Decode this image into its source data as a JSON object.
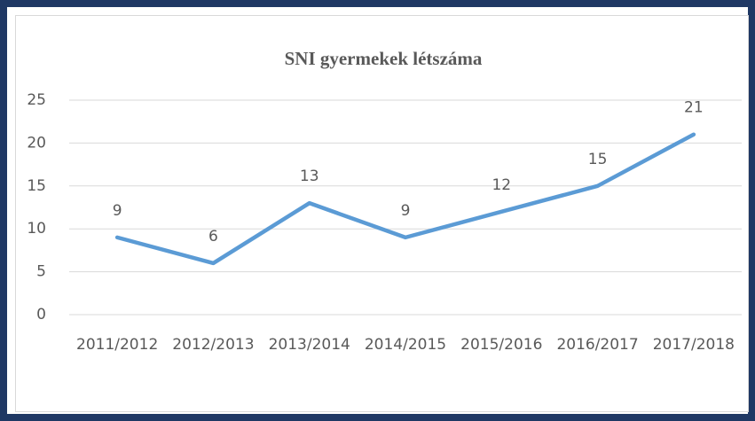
{
  "chart_data": {
    "type": "line",
    "title": "SNI gyermekek létszáma",
    "categories": [
      "2011/2012",
      "2012/2013",
      "2013/2014",
      "2014/2015",
      "2015/2016",
      "2016/2017",
      "2017/2018"
    ],
    "values": [
      9,
      6,
      13,
      9,
      12,
      15,
      21
    ],
    "color": "#5b9bd5",
    "ylim": [
      0,
      25
    ],
    "yticks": [
      0,
      5,
      10,
      15,
      20,
      25
    ],
    "grid": true
  }
}
